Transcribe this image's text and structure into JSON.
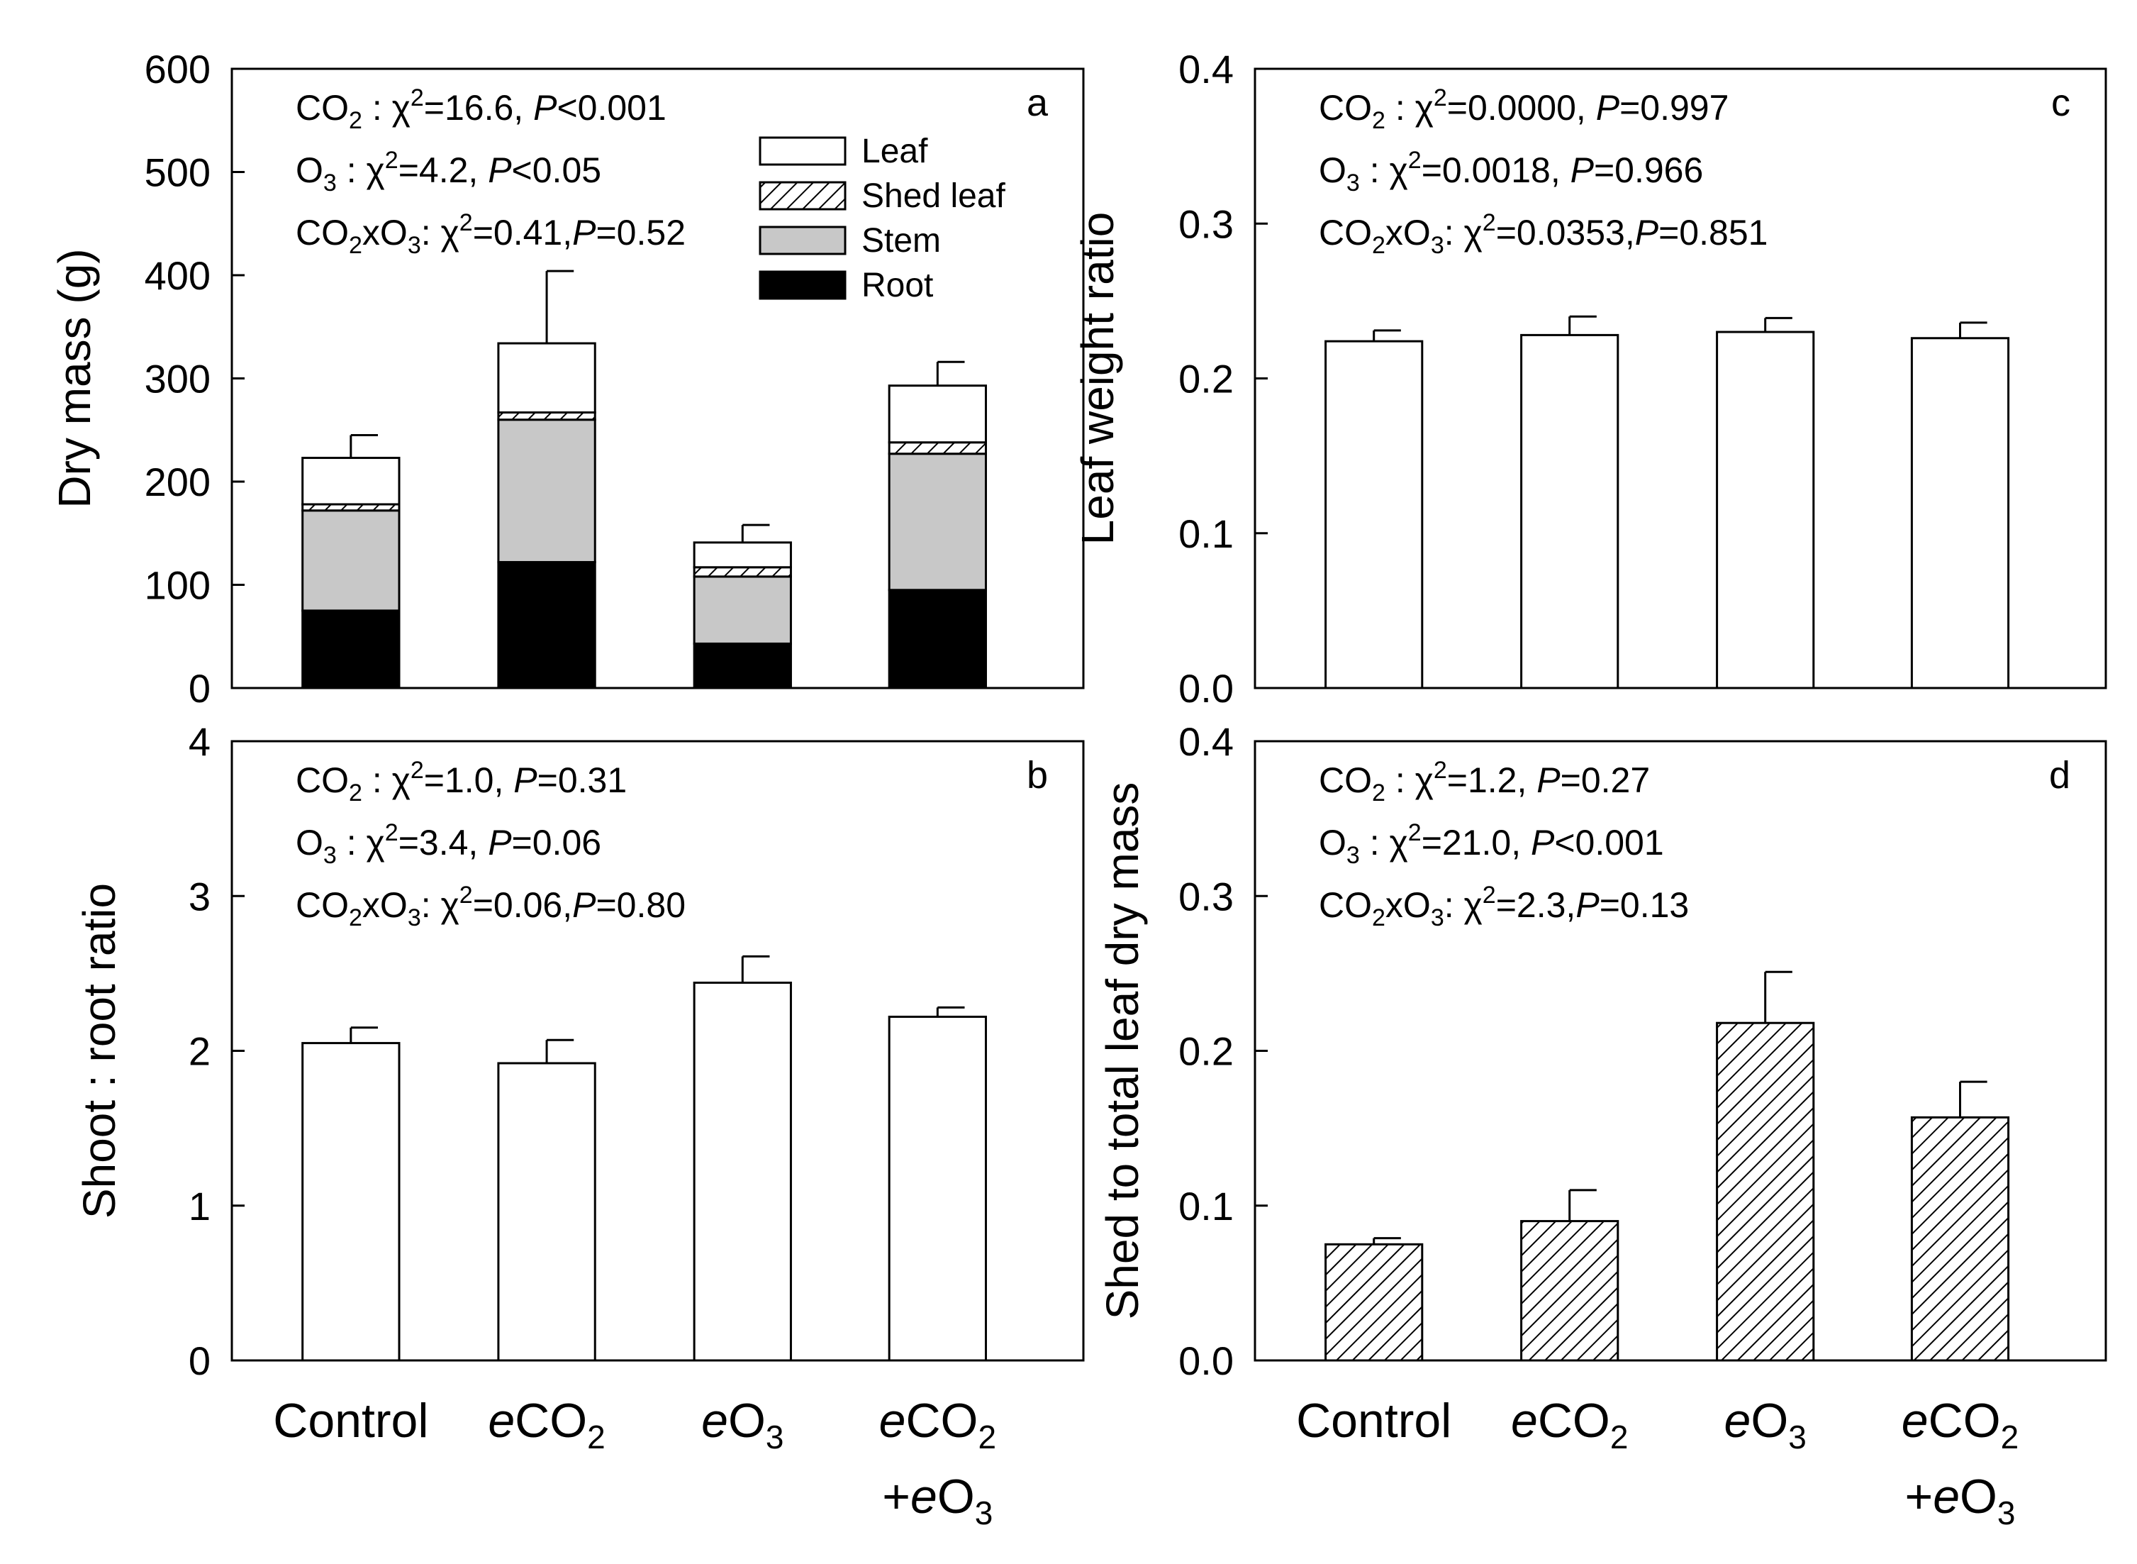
{
  "categories": [
    {
      "pre": "",
      "main": "Control",
      "line2": null
    },
    {
      "pre": "e",
      "main": "CO",
      "sub": "2",
      "line2": null
    },
    {
      "pre": "e",
      "main": "O",
      "sub": "3",
      "line2": null
    },
    {
      "pre": "e",
      "main": "CO",
      "sub": "2",
      "line2": {
        "plus": "+",
        "pre": "e",
        "main": "O",
        "sub": "3"
      }
    }
  ],
  "colors": {
    "leaf": "#ffffff",
    "stem": "#c8c8c8",
    "root": "#000000",
    "stroke": "#000000"
  },
  "chart_data": [
    {
      "id": "a",
      "type": "bar",
      "stacked": true,
      "panel_letter": "a",
      "ylabel": "Dry mass (g)",
      "ylim": [
        0,
        600
      ],
      "yticks": [
        "0",
        "100",
        "200",
        "300",
        "400",
        "500",
        "600"
      ],
      "yticks_values": [
        0,
        100,
        200,
        300,
        400,
        500,
        600
      ],
      "stats": [
        {
          "pre": "CO",
          "sub": "2",
          "post": " : ",
          "chi": "χ",
          "sup": "2",
          "val": "=16.6, ",
          "p": "P",
          "pval": "<0.001"
        },
        {
          "pre": "O",
          "sub": "3",
          "post": "  : ",
          "chi": "χ",
          "sup": "2",
          "val": "=4.2, ",
          "p": "P",
          "pval": "<0.05"
        },
        {
          "pre": "CO",
          "sub": "2",
          "mid": "xO",
          "sub2": "3",
          "post": ": ",
          "chi": "χ",
          "sup": "2",
          "val": "=0.41,",
          "p": "P",
          "pval": "=0.52"
        }
      ],
      "legend": [
        {
          "label": "Leaf",
          "fill": "leaf"
        },
        {
          "label": "Shed leaf",
          "fill": "hatch"
        },
        {
          "label": "Stem",
          "fill": "stem"
        },
        {
          "label": "Root",
          "fill": "root"
        }
      ],
      "series": [
        {
          "name": "Root",
          "fill": "root",
          "values": [
            75,
            122,
            43,
            95
          ]
        },
        {
          "name": "Stem",
          "fill": "stem",
          "values": [
            97,
            138,
            65,
            132
          ]
        },
        {
          "name": "Shed leaf",
          "fill": "hatch",
          "values": [
            6,
            7,
            9,
            11
          ]
        },
        {
          "name": "Leaf",
          "fill": "leaf",
          "values": [
            45,
            67,
            24,
            55
          ]
        }
      ],
      "totals": [
        223,
        334,
        141,
        293
      ],
      "errors": [
        22,
        70,
        17,
        23
      ]
    },
    {
      "id": "b",
      "type": "bar",
      "panel_letter": "b",
      "ylabel": "Shoot : root ratio",
      "ylim": [
        0,
        4
      ],
      "yticks": [
        "0",
        "1",
        "2",
        "3",
        "4"
      ],
      "yticks_values": [
        0,
        1,
        2,
        3,
        4
      ],
      "stats": [
        {
          "pre": "CO",
          "sub": "2",
          "post": " : ",
          "chi": "χ",
          "sup": "2",
          "val": "=1.0, ",
          "p": "P",
          "pval": "=0.31"
        },
        {
          "pre": "O",
          "sub": "3",
          "post": "  : ",
          "chi": "χ",
          "sup": "2",
          "val": "=3.4, ",
          "p": "P",
          "pval": "=0.06"
        },
        {
          "pre": "CO",
          "sub": "2",
          "mid": "xO",
          "sub2": "3",
          "post": ": ",
          "chi": "χ",
          "sup": "2",
          "val": "=0.06,",
          "p": "P",
          "pval": "=0.80"
        }
      ],
      "fill": "leaf",
      "values": [
        2.05,
        1.92,
        2.44,
        2.22
      ],
      "errors": [
        0.1,
        0.15,
        0.17,
        0.06
      ]
    },
    {
      "id": "c",
      "type": "bar",
      "panel_letter": "c",
      "ylabel": "Leaf weight ratio",
      "ylim": [
        0,
        0.4
      ],
      "yticks": [
        "0.0",
        "0.1",
        "0.2",
        "0.3",
        "0.4"
      ],
      "yticks_values": [
        0,
        0.1,
        0.2,
        0.3,
        0.4
      ],
      "stats": [
        {
          "pre": "CO",
          "sub": "2",
          "post": " : ",
          "chi": "χ",
          "sup": "2",
          "val": "=0.0000, ",
          "p": "P",
          "pval": "=0.997"
        },
        {
          "pre": "O",
          "sub": "3",
          "post": "  : ",
          "chi": "χ",
          "sup": "2",
          "val": "=0.0018, ",
          "p": "P",
          "pval": "=0.966"
        },
        {
          "pre": "CO",
          "sub": "2",
          "mid": "xO",
          "sub2": "3",
          "post": ": ",
          "chi": "χ",
          "sup": "2",
          "val": "=0.0353,",
          "p": "P",
          "pval": "=0.851"
        }
      ],
      "fill": "leaf",
      "values": [
        0.224,
        0.228,
        0.23,
        0.226
      ],
      "errors": [
        0.007,
        0.012,
        0.009,
        0.01
      ]
    },
    {
      "id": "d",
      "type": "bar",
      "panel_letter": "d",
      "ylabel": "Shed to total leaf dry mass",
      "ylim": [
        0,
        0.4
      ],
      "yticks": [
        "0.0",
        "0.1",
        "0.2",
        "0.3",
        "0.4"
      ],
      "yticks_values": [
        0,
        0.1,
        0.2,
        0.3,
        0.4
      ],
      "stats": [
        {
          "pre": "CO",
          "sub": "2",
          "post": " : ",
          "chi": "χ",
          "sup": "2",
          "val": "=1.2, ",
          "p": "P",
          "pval": "=0.27"
        },
        {
          "pre": "O",
          "sub": "3",
          "post": "  : ",
          "chi": "χ",
          "sup": "2",
          "val": "=21.0, ",
          "p": "P",
          "pval": "<0.001"
        },
        {
          "pre": "CO",
          "sub": "2",
          "mid": "xO",
          "sub2": "3",
          "post": ": ",
          "chi": "χ",
          "sup": "2",
          "val": "=2.3,",
          "p": "P",
          "pval": "=0.13"
        }
      ],
      "fill": "hatch",
      "values": [
        0.075,
        0.09,
        0.218,
        0.157
      ],
      "errors": [
        0.004,
        0.02,
        0.033,
        0.023
      ]
    }
  ]
}
